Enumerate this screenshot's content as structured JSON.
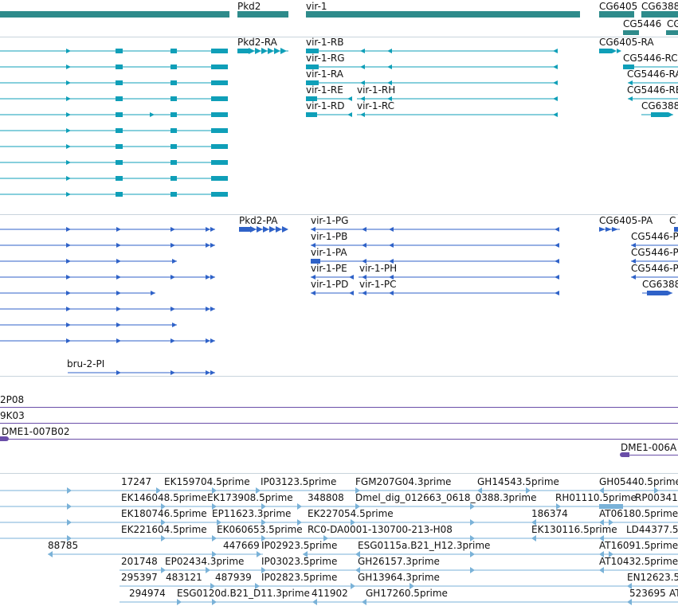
{
  "tracks": {
    "genes": {
      "labels": [
        {
          "id": "pkd2",
          "text": "Pkd2"
        },
        {
          "id": "vir1",
          "text": "vir-1"
        },
        {
          "id": "cg6405",
          "text": "CG6405"
        },
        {
          "id": "cg6388",
          "text": "CG6388"
        },
        {
          "id": "cg5446",
          "text": "CG5446"
        },
        {
          "id": "cg_c",
          "text": "CG"
        }
      ]
    },
    "transcripts_ra": {
      "labels": [
        "Pkd2-RA",
        "vir-1-RB",
        "vir-1-RG",
        "vir-1-RA",
        "vir-1-RE",
        "vir-1-RH",
        "vir-1-RD",
        "vir-1-RC",
        "CG6405-RA",
        "CG5446-RC",
        "CG5446-RA",
        "CG5446-RB",
        "CG6388"
      ]
    },
    "transcripts_pa": {
      "labels": [
        "Pkd2-PA",
        "vir-1-PG",
        "vir-1-PB",
        "vir-1-PA",
        "vir-1-PE",
        "vir-1-PH",
        "vir-1-PD",
        "vir-1-PC",
        "bru-2-PI",
        "CG6405-PA",
        "CG5446-P",
        "CG5446-P",
        "CG5446-P",
        "CG6388",
        "C"
      ]
    },
    "clones": {
      "labels": [
        "2P08",
        "9K03",
        "DME1-007B02",
        "DME1-006A"
      ]
    },
    "ests": {
      "labels": [
        "17247",
        "EK159704.5prime",
        "IP03123.5prime",
        "FGM207G04.3prime",
        "GH14543.5prime",
        "GH05440.5prime",
        "EK146048.5prime",
        "EK173908.5prime",
        "348808",
        "Dmel_dig_012663_0618_0388.3prime",
        "RH01110.5prime",
        "RP00341",
        "EK180746.5prime",
        "EP11623.3prime",
        "EK227054.5prime",
        "186374",
        "AT06180.5prime",
        "EK221604.5prime",
        "EK060653.5prime",
        "RC0-DA0001-130700-213-H08",
        "EK130116.5prime",
        "LD44377.5",
        "88785",
        "447669",
        "IP02923.5prime",
        "ESG0115a.B21_H12.3prime",
        "AT16091.5prime",
        "201748",
        "EP02434.3prime",
        "IP03023.5prime",
        "GH26157.3prime",
        "AT10432.5prime",
        "295397",
        "483121",
        "487939",
        "IP02823.5prime",
        "GH13964.3prime",
        "EN12623.5",
        "294974",
        "ESG0120d.B21_D11.3prime",
        "411902",
        "GH17260.5prime",
        "523695",
        "AT"
      ]
    }
  },
  "colors": {
    "gene": "#2e8b8b",
    "transcript_ra": "#0f9fb8",
    "transcript_pa": "#2f62c8",
    "clone": "#6a4ea8",
    "est": "#7ab2d8",
    "border": "#c9d4dc"
  }
}
